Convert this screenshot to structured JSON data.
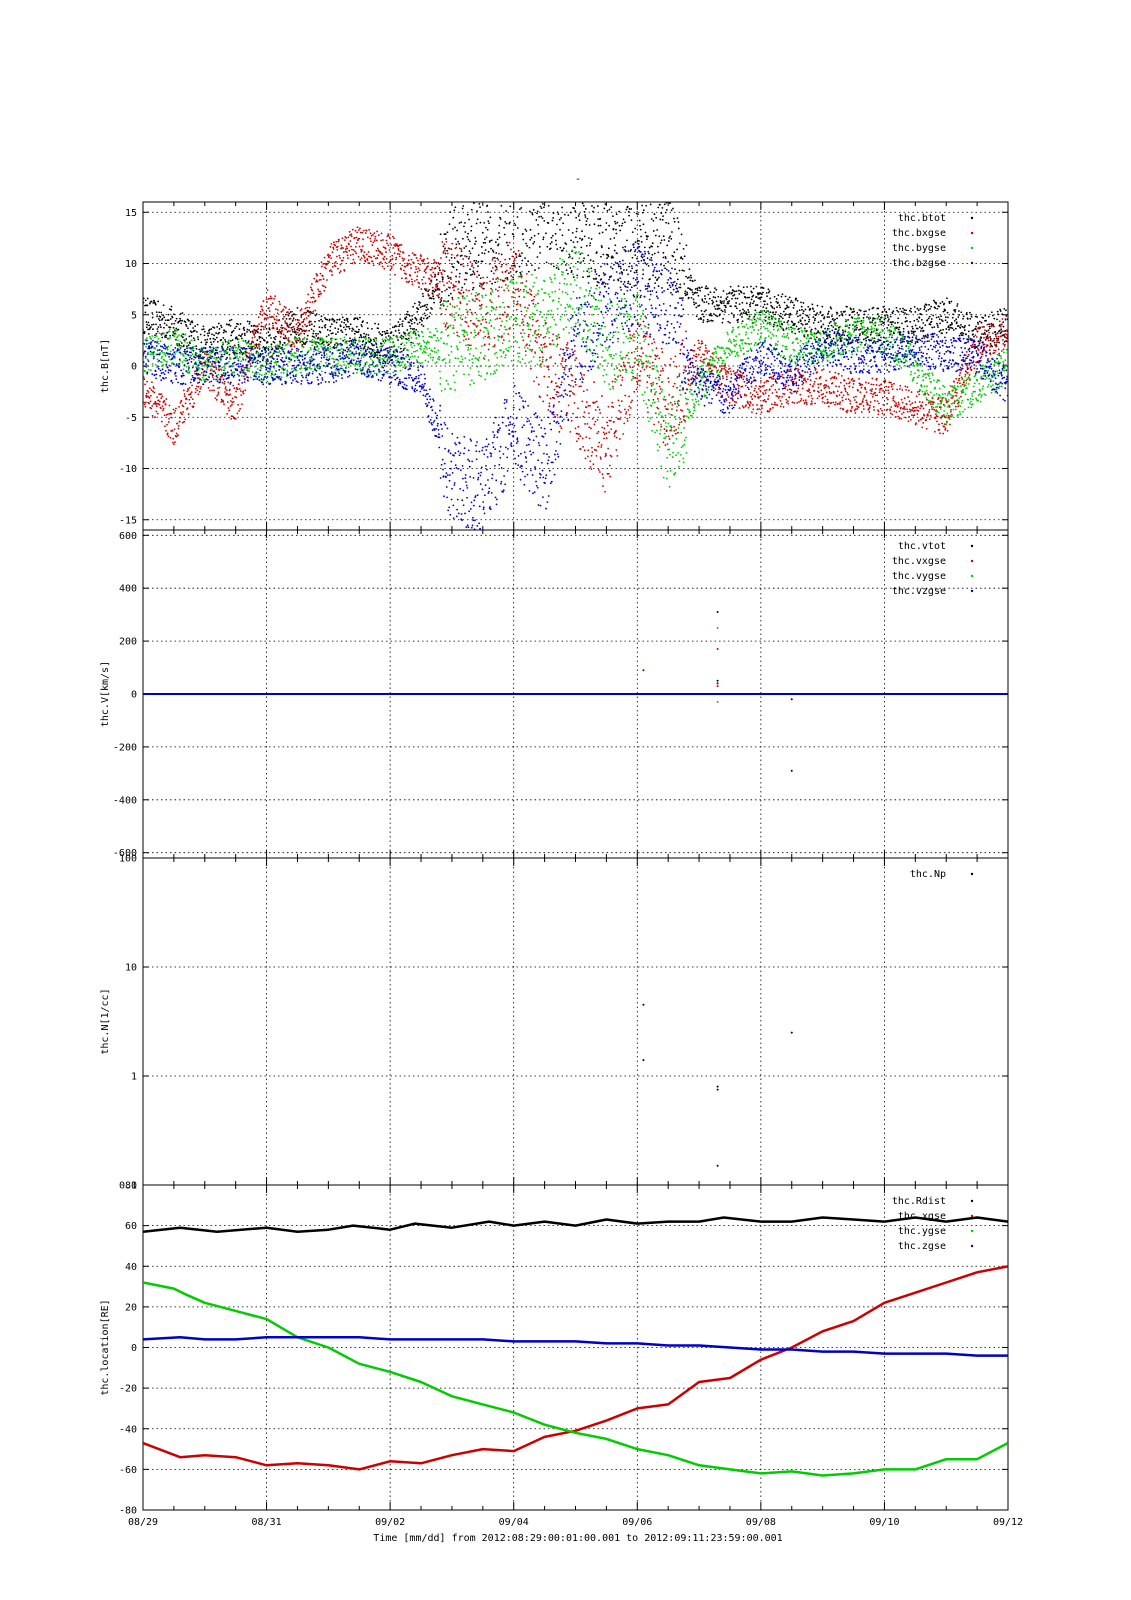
{
  "figure": {
    "title": "-",
    "xlabel": "Time [mm/dd]  from 2012:08:29:00:01:00.001  to  2012:09:11:23:59:00.001",
    "x_tick_labels": [
      "08/29",
      "08/31",
      "09/02",
      "09/04",
      "09/06",
      "09/08",
      "09/10",
      "09/12"
    ]
  },
  "chart_data": [
    {
      "type": "scatter",
      "ylabel": "thc.B[nT]",
      "ylim": [
        -16,
        16
      ],
      "yticks": [
        -15,
        -10,
        -5,
        0,
        5,
        10,
        15
      ],
      "x_range_days": [
        0,
        14
      ],
      "grid": true,
      "legend_position": "top-right",
      "series": [
        {
          "name": "thc.btot",
          "color": "#000000",
          "x": [
            0,
            0.5,
            1,
            1.5,
            2,
            2.5,
            3,
            3.5,
            4,
            4.5,
            5,
            5.5,
            6,
            6.5,
            7,
            7.5,
            8,
            8.5,
            9,
            9.5,
            10,
            10.5,
            11,
            11.5,
            12,
            12.5,
            13,
            13.5,
            14
          ],
          "y": [
            5,
            4,
            2,
            3,
            2,
            4,
            3,
            3,
            2,
            5,
            11,
            12,
            13,
            14,
            13,
            12,
            11,
            12,
            6,
            6,
            6,
            5,
            4,
            4,
            4,
            4,
            5,
            3,
            4
          ]
        },
        {
          "name": "thc.bxgse",
          "color": "#cc0000",
          "x": [
            0,
            0.5,
            1,
            1.5,
            2,
            2.5,
            3,
            3.5,
            4,
            4.5,
            5,
            5.5,
            6,
            6.5,
            7,
            7.5,
            8,
            8.5,
            9,
            9.5,
            10,
            10.5,
            11,
            11.5,
            12,
            12.5,
            13,
            13.5,
            14
          ],
          "y": [
            -2,
            -6,
            0,
            -4,
            6,
            3,
            10,
            12,
            11,
            9,
            8,
            5,
            8,
            0,
            -3,
            -8,
            2,
            -4,
            1,
            -2,
            -3,
            -2,
            -2,
            -3,
            -3,
            -4,
            -5,
            2,
            3
          ]
        },
        {
          "name": "thc.bygse",
          "color": "#00cc00",
          "x": [
            0,
            0.5,
            1,
            1.5,
            2,
            2.5,
            3,
            3.5,
            4,
            4.5,
            5,
            5.5,
            6,
            6.5,
            7,
            7.5,
            8,
            8.5,
            9,
            9.5,
            10,
            10.5,
            11,
            11.5,
            12,
            12.5,
            13,
            13.5,
            14
          ],
          "y": [
            1,
            2,
            0,
            1,
            0,
            1,
            1,
            1,
            1,
            2,
            2,
            3,
            5,
            4,
            8,
            2,
            3,
            -8,
            -2,
            2,
            4,
            2,
            2,
            3,
            3,
            0,
            -4,
            -2,
            0
          ]
        },
        {
          "name": "thc.bzgse",
          "color": "#0000cc",
          "x": [
            0,
            0.5,
            1,
            1.5,
            2,
            2.5,
            3,
            3.5,
            4,
            4.5,
            5,
            5.5,
            6,
            6.5,
            7,
            7.5,
            8,
            8.5,
            9,
            9.5,
            10,
            10.5,
            11,
            11.5,
            12,
            12.5,
            13,
            13.5,
            14
          ],
          "y": [
            1,
            0,
            0,
            0,
            0,
            0,
            0,
            1,
            0,
            -1,
            -11,
            -12,
            -6,
            -10,
            2,
            6,
            8,
            6,
            -2,
            -3,
            1,
            -1,
            2,
            1,
            1,
            2,
            1,
            1,
            -2
          ]
        }
      ]
    },
    {
      "type": "scatter",
      "ylabel": "thc.V[km/s]",
      "ylim": [
        -620,
        620
      ],
      "yticks": [
        -600,
        -400,
        -200,
        0,
        200,
        400,
        600
      ],
      "x_range_days": [
        0,
        14
      ],
      "grid": true,
      "legend_position": "top-right",
      "series": [
        {
          "name": "thc.vtot",
          "color": "#000000",
          "x": [
            0,
            14,
            9.3,
            9.3,
            10.5,
            10.5
          ],
          "y": [
            0,
            0,
            310,
            50,
            -290,
            -20
          ]
        },
        {
          "name": "thc.vxgse",
          "color": "#cc0000",
          "x": [
            0,
            14,
            9.3,
            9.3
          ],
          "y": [
            0,
            0,
            170,
            30
          ]
        },
        {
          "name": "thc.vygse",
          "color": "#00cc00",
          "x": [
            0,
            14,
            9.3,
            9.3
          ],
          "y": [
            0,
            0,
            250,
            -30
          ]
        },
        {
          "name": "thc.vzgse",
          "color": "#0000cc",
          "x": [
            0,
            14,
            8.1,
            9.3
          ],
          "y": [
            0,
            0,
            90,
            40
          ]
        }
      ]
    },
    {
      "type": "scatter",
      "ylabel": "thc.N[1/cc]",
      "yscale": "log",
      "ylim": [
        0.1,
        100
      ],
      "yticks": [
        0.1,
        1,
        10,
        100
      ],
      "x_range_days": [
        0,
        14
      ],
      "grid": true,
      "legend_position": "top-right",
      "series": [
        {
          "name": "thc.Np",
          "color": "#000000",
          "x": [
            8.1,
            8.1,
            9.3,
            9.3,
            9.3,
            10.5
          ],
          "y": [
            4.5,
            1.4,
            0.8,
            0.75,
            0.15,
            2.5
          ]
        }
      ]
    },
    {
      "type": "line",
      "ylabel": "thc.location[RE]",
      "ylim": [
        -80,
        80
      ],
      "yticks": [
        -80,
        -60,
        -40,
        -20,
        0,
        20,
        40,
        60,
        80
      ],
      "x_range_days": [
        0,
        14
      ],
      "grid": true,
      "legend_position": "top-right",
      "series": [
        {
          "name": "thc.Rdist",
          "color": "#000000",
          "x": [
            0,
            0.6,
            1.2,
            2,
            2.5,
            3,
            3.4,
            4,
            4.4,
            5,
            5.6,
            6,
            6.5,
            7,
            7.5,
            8,
            8.5,
            9,
            9.4,
            10,
            10.5,
            11,
            11.5,
            12,
            12.5,
            13,
            13.5,
            14
          ],
          "y": [
            57,
            59,
            57,
            59,
            57,
            58,
            60,
            58,
            61,
            59,
            62,
            60,
            62,
            60,
            63,
            61,
            62,
            62,
            64,
            62,
            62,
            64,
            63,
            62,
            64,
            62,
            64,
            62
          ]
        },
        {
          "name": "thc.xgse",
          "color": "#cc0000",
          "x": [
            0,
            0.6,
            1,
            1.5,
            2,
            2.5,
            3,
            3.5,
            4,
            4.5,
            5,
            5.5,
            6,
            6.5,
            7,
            7.5,
            8,
            8.5,
            9,
            9.5,
            10,
            10.5,
            11,
            11.5,
            12,
            12.5,
            13,
            13.5,
            14
          ],
          "y": [
            -47,
            -54,
            -53,
            -54,
            -58,
            -57,
            -58,
            -60,
            -56,
            -57,
            -53,
            -50,
            -51,
            -44,
            -41,
            -36,
            -30,
            -28,
            -17,
            -15,
            -6,
            0,
            8,
            13,
            22,
            27,
            32,
            37,
            40
          ]
        },
        {
          "name": "thc.ygse",
          "color": "#00cc00",
          "x": [
            0,
            0.5,
            0.7,
            1,
            1.5,
            2,
            2.5,
            3,
            3.5,
            4,
            4.5,
            5,
            5.5,
            6,
            6.5,
            7,
            7.5,
            8,
            8.5,
            9,
            9.5,
            10,
            10.5,
            11,
            11.5,
            12,
            12.5,
            13,
            13.5,
            14
          ],
          "y": [
            32,
            29,
            26,
            22,
            18,
            14,
            5,
            0,
            -8,
            -12,
            -17,
            -24,
            -28,
            -32,
            -38,
            -42,
            -45,
            -50,
            -53,
            -58,
            -60,
            -62,
            -61,
            -63,
            -62,
            -60,
            -60,
            -55,
            -55,
            -47
          ]
        },
        {
          "name": "thc.zgse",
          "color": "#0000cc",
          "x": [
            0,
            0.6,
            1,
            1.5,
            2,
            2.5,
            3,
            3.5,
            4,
            4.5,
            5,
            5.5,
            6,
            6.5,
            7,
            7.5,
            8,
            8.5,
            9,
            9.5,
            10,
            10.5,
            11,
            11.5,
            12,
            12.5,
            13,
            13.5,
            14
          ],
          "y": [
            4,
            5,
            4,
            4,
            5,
            5,
            5,
            5,
            4,
            4,
            4,
            4,
            3,
            3,
            3,
            2,
            2,
            1,
            1,
            0,
            -1,
            -1,
            -2,
            -2,
            -3,
            -3,
            -3,
            -4,
            -4
          ]
        }
      ]
    }
  ]
}
